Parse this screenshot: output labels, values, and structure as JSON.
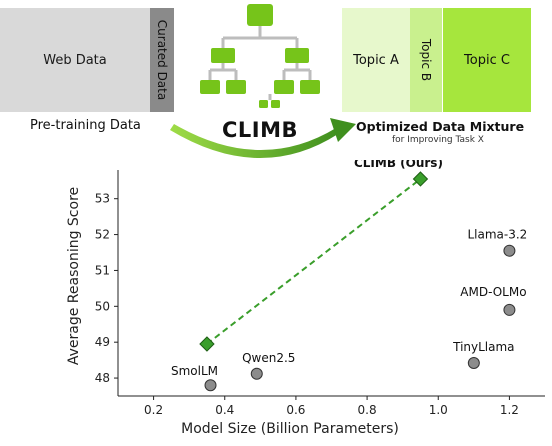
{
  "top": {
    "web_data": "Web Data",
    "curated_data": "Curated Data",
    "pretraining_label": "Pre-training Data",
    "method": "CLIMB",
    "topics": [
      "Topic A",
      "Topic B",
      "Topic C"
    ],
    "mixture_title": "Optimized Data Mixture",
    "mixture_subtitle": "for Improving Task X"
  },
  "colors": {
    "web_data": "#d9d9d9",
    "curated_data": "#8a8a8a",
    "topic_a": "#e7f8cc",
    "topic_b": "#c9f08e",
    "topic_c": "#a6e63d",
    "climb_green": "#3a9e2b",
    "tree_green": "#76c41a",
    "baseline_gray": "#8c8c8c"
  },
  "chart_data": {
    "type": "scatter",
    "title": "",
    "xlabel": "Model Size (Billion Parameters)",
    "ylabel": "Average Reasoning Score",
    "xlim": [
      0.1,
      1.3
    ],
    "ylim": [
      47.5,
      53.8
    ],
    "xticks": [
      "0.2",
      "0.4",
      "0.6",
      "0.8",
      "1.0",
      "1.2"
    ],
    "yticks": [
      "48",
      "49",
      "50",
      "51",
      "52",
      "53"
    ],
    "grid": false,
    "points": [
      {
        "label": "SmolLM",
        "x": 0.36,
        "y": 47.8,
        "series": "baseline"
      },
      {
        "label": "Qwen2.5",
        "x": 0.49,
        "y": 48.12,
        "series": "baseline"
      },
      {
        "label": "TinyLlama",
        "x": 1.1,
        "y": 48.42,
        "series": "baseline"
      },
      {
        "label": "AMD-OLMo",
        "x": 1.2,
        "y": 49.9,
        "series": "baseline"
      },
      {
        "label": "Llama-3.2",
        "x": 1.2,
        "y": 51.55,
        "series": "baseline"
      },
      {
        "label": "",
        "x": 0.35,
        "y": 48.95,
        "series": "climb"
      },
      {
        "label": "CLIMB (Ours)",
        "x": 0.95,
        "y": 53.55,
        "series": "climb"
      }
    ]
  }
}
